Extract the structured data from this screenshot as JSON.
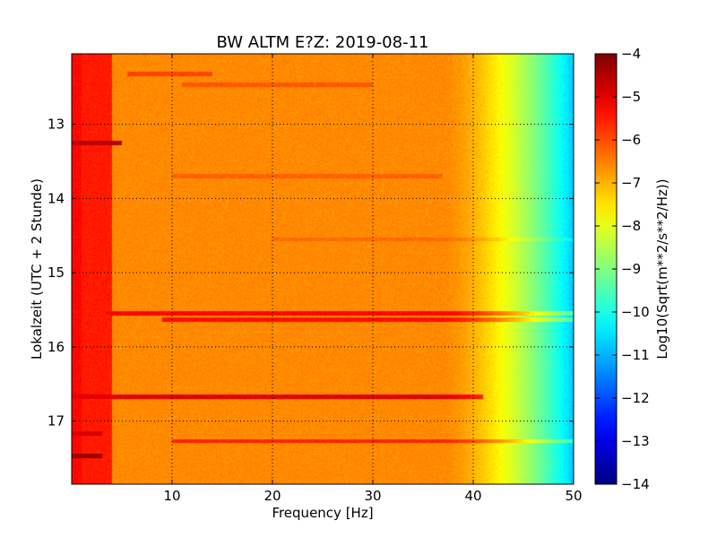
{
  "chart_data": {
    "type": "heatmap",
    "title": "BW ALTM E?Z: 2019-08-11",
    "xlabel": "Frequency [Hz]",
    "ylabel": "Lokalzeit (UTC + 2 Stunde)",
    "xlim": [
      0,
      50
    ],
    "ylim": [
      12.05,
      17.85
    ],
    "y_inverted": true,
    "x_ticks": [
      "10",
      "20",
      "30",
      "40",
      "50"
    ],
    "y_ticks": [
      "13",
      "14",
      "15",
      "16",
      "17"
    ],
    "grid": true,
    "colormap": "jet",
    "colorbar": {
      "label": "Log10(Sqrt(m**2/s**2/Hz))",
      "range": [
        -14,
        -4
      ],
      "ticks": [
        "-4",
        "-5",
        "-6",
        "-7",
        "-8",
        "-9",
        "-10",
        "-11",
        "-12",
        "-13",
        "-14"
      ]
    },
    "field": {
      "background_value": -6.6,
      "low_freq_value": -5.5,
      "rolloff_start_hz": 37,
      "rolloff_end_hz": 50,
      "rolloff_end_value": -10.8,
      "bands": [
        {
          "time": 12.32,
          "f_from": 5.5,
          "f_to": 14,
          "value": -5.9
        },
        {
          "time": 12.47,
          "f_from": 11,
          "f_to": 30,
          "value": -6.1
        },
        {
          "time": 13.25,
          "f_from": 0,
          "f_to": 5,
          "value": -4.6
        },
        {
          "time": 13.7,
          "f_from": 10,
          "f_to": 37,
          "value": -6.2
        },
        {
          "time": 14.55,
          "f_from": 20,
          "f_to": 50,
          "value": -6.3
        },
        {
          "time": 15.55,
          "f_from": 3.5,
          "f_to": 50,
          "value": -5.3
        },
        {
          "time": 15.63,
          "f_from": 9,
          "f_to": 50,
          "value": -5.4
        },
        {
          "time": 16.67,
          "f_from": 0,
          "f_to": 41,
          "value": -5.0
        },
        {
          "time": 17.17,
          "f_from": 0,
          "f_to": 3,
          "value": -4.9
        },
        {
          "time": 17.27,
          "f_from": 10,
          "f_to": 50,
          "value": -5.6
        },
        {
          "time": 17.47,
          "f_from": 0,
          "f_to": 3,
          "value": -4.3
        }
      ]
    }
  }
}
